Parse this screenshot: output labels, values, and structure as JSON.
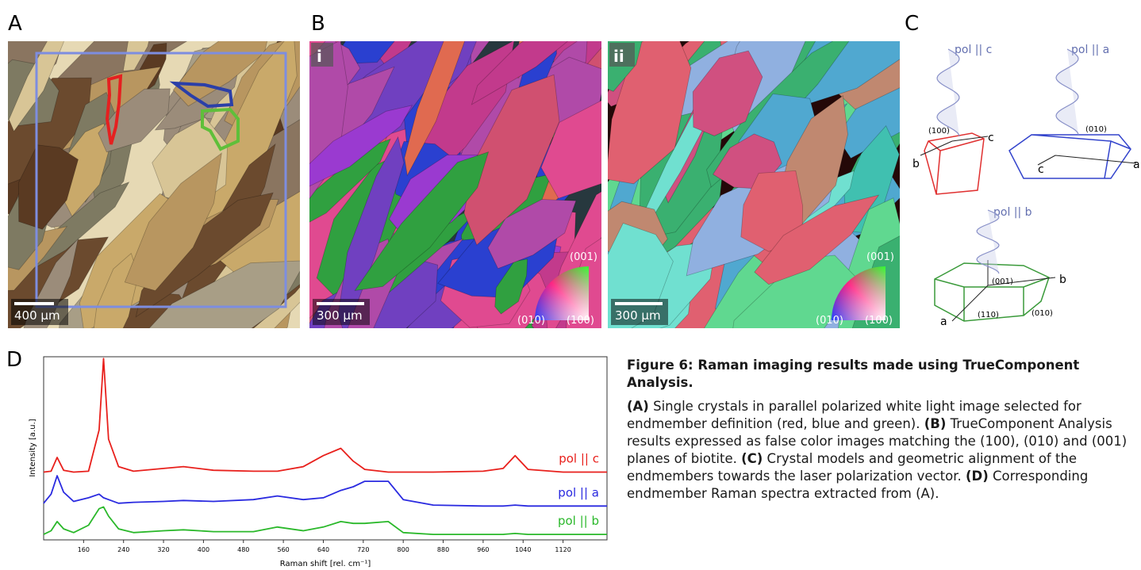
{
  "panel_labels": [
    "A",
    "B",
    "C",
    "D"
  ],
  "panel_a": {
    "scale_bar": "400 µm"
  },
  "panel_b": [
    {
      "tag": "i",
      "scale_bar": "300 µm",
      "orientation_labels": [
        "(001)",
        "(010)",
        "(100)"
      ]
    },
    {
      "tag": "ii",
      "scale_bar": "300 µm",
      "orientation_labels": [
        "(001)",
        "(010)",
        "(100)"
      ]
    }
  ],
  "panel_c": {
    "crystals": [
      {
        "polarization": "pol || c",
        "labels": [
          "(100)",
          "c",
          "b"
        ]
      },
      {
        "polarization": "pol || a",
        "labels": [
          "(010)",
          "a",
          "c"
        ]
      },
      {
        "polarization": "pol || b",
        "labels": [
          "(001)",
          "b",
          "a",
          "(110)",
          "(010)"
        ]
      }
    ]
  },
  "chart_data": {
    "type": "line",
    "x_label": "Raman shift [rel. cm⁻¹]",
    "y_label": "Intensity [a.u.]",
    "x": [
      80,
      95,
      107,
      120,
      140,
      170,
      191,
      200,
      210,
      230,
      260,
      320,
      360,
      420,
      500,
      548,
      600,
      640,
      675,
      700,
      723,
      770,
      800,
      860,
      960,
      1000,
      1024,
      1050,
      1120,
      1208
    ],
    "series": [
      {
        "name": "pol || c",
        "color": "#e8201c",
        "values": [
          37,
          37.5,
          45,
          38,
          37,
          37.5,
          60,
          99,
          55,
          40,
          37.5,
          39,
          40,
          38,
          37.5,
          37.5,
          40,
          46,
          50,
          43,
          38.5,
          37,
          37,
          37,
          37.5,
          39,
          46,
          38.5,
          37,
          37
        ]
      },
      {
        "name": "pol || a",
        "color": "#2a2ae0",
        "values": [
          20,
          25,
          35,
          26,
          21,
          23,
          25,
          23,
          22,
          20,
          20.5,
          21,
          21.5,
          21,
          22,
          24,
          22,
          23,
          27,
          29,
          32,
          32,
          22,
          19,
          18.5,
          18.5,
          19,
          18.5,
          18.5,
          18.5
        ]
      },
      {
        "name": "pol || b",
        "color": "#2ab82a",
        "values": [
          3,
          5,
          10,
          6,
          4,
          8,
          17,
          18,
          13,
          6,
          4,
          5,
          5.5,
          4.5,
          4.5,
          7,
          5,
          7,
          10,
          9,
          9,
          10,
          4,
          3,
          3,
          3,
          3.5,
          3,
          3,
          3
        ]
      }
    ],
    "xlim": [
      80,
      1208
    ],
    "ylim": [
      0,
      100
    ],
    "xticks": [
      160,
      240,
      320,
      400,
      480,
      560,
      640,
      720,
      800,
      880,
      960,
      1040,
      1120
    ]
  },
  "caption": {
    "title": "Figure 6: Raman imaging results made using TrueComponent Analysis.",
    "parts": [
      {
        "label": "(A)",
        "text": " Single crystals in parallel polarized white light image selected for endmember definition (red, blue and green). "
      },
      {
        "label": "(B)",
        "text": " TrueComponent Analysis results expressed as false color images matching the (100), (010) and (001) planes of biotite. "
      },
      {
        "label": "(C)",
        "text": " Crystal models and geometric alignment of the endmembers towards the laser polarization vector. "
      },
      {
        "label": "(D)",
        "text": " Corresponding endmember Raman spectra extracted from (A)."
      }
    ]
  }
}
